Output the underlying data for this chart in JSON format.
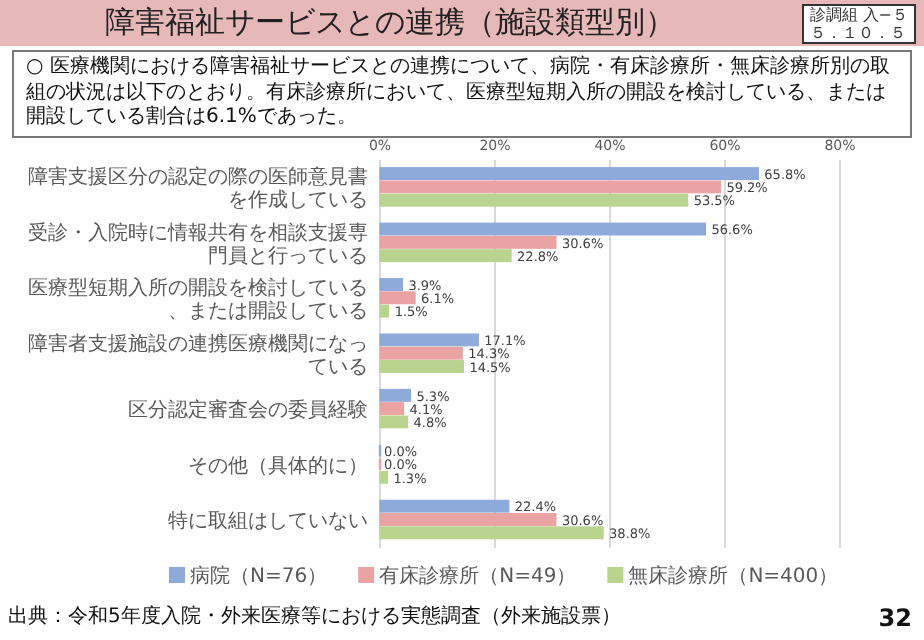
{
  "chart_data": {
    "type": "bar",
    "orientation": "horizontal",
    "title": "障害福祉サービスとの連携（施設類型別）",
    "subtitle": "○ 医療機関における障害福祉サービスとの連携について、病院・有床診療所・無床診療所別の取組の状況は以下のとおり。有床診療所において、医療型短期入所の開設を検討している、または開設している割合は6.1%であった。",
    "categories": [
      "障害支援区分の認定の際の医師意見書を作成している",
      "受診・入院時に情報共有を相談支援専門員と行っている",
      "医療型短期入所の開設を検討している、または開設している",
      "障害者支援施設の連携医療機関になっている",
      "区分認定審査会の委員経験",
      "その他（具体的に）",
      "特に取組はしていない"
    ],
    "series": [
      {
        "name": "病院（N=76）",
        "color": "#8eaadb",
        "values": [
          65.8,
          56.6,
          3.9,
          17.1,
          5.3,
          0.0,
          22.4
        ],
        "value_labels": [
          "65.8%",
          "56.6%",
          "3.9%",
          "17.1%",
          "5.3%",
          "0.0%",
          "22.4%"
        ]
      },
      {
        "name": "有床診療所（N=49）",
        "color": "#eaa3a3",
        "values": [
          59.2,
          30.6,
          6.1,
          14.3,
          4.1,
          0.0,
          30.6
        ],
        "value_labels": [
          "59.2%",
          "30.6%",
          "6.1%",
          "14.3%",
          "4.1%",
          "0.0%",
          "30.6%"
        ]
      },
      {
        "name": "無床診療所（N=400）",
        "color": "#b9d48e",
        "values": [
          53.5,
          22.8,
          1.5,
          14.5,
          4.8,
          1.3,
          38.8
        ],
        "value_labels": [
          "53.5%",
          "22.8%",
          "1.5%",
          "14.5%",
          "4.8%",
          "1.3%",
          "38.8%"
        ]
      }
    ],
    "xlim": [
      0,
      80
    ],
    "xticks": [
      {
        "value": 0,
        "label": "0%"
      },
      {
        "value": 20,
        "label": "20%"
      },
      {
        "value": 40,
        "label": "40%"
      },
      {
        "value": 60,
        "label": "60%"
      },
      {
        "value": 80,
        "label": "80%"
      }
    ],
    "grid": "x",
    "legend": "bottom",
    "annotations": [
      "診調組 入−５",
      "５．１０．５",
      "出典：令和5年度入院・外来医療等における実態調査（外来施設票）",
      "32"
    ]
  }
}
